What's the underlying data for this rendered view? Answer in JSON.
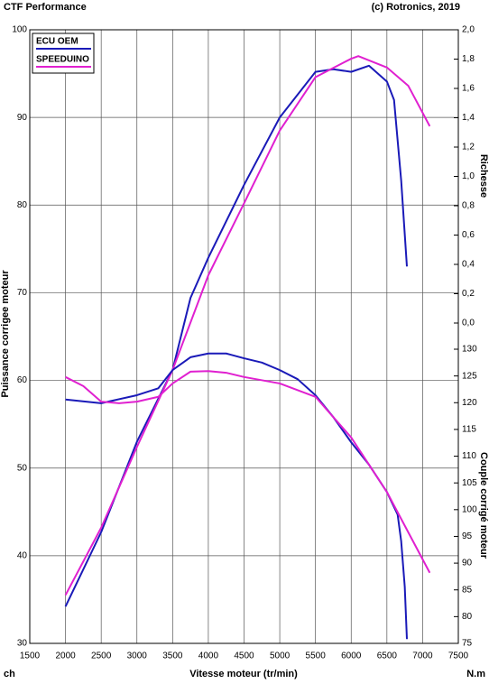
{
  "chart_data": {
    "type": "line",
    "title": "CTF Performance",
    "subtitle": "(c) Rotronics, 2019",
    "x_label": "Vitesse moteur (tr/min)",
    "y_label": "Puissance corrigee moteur",
    "y_unit": "ch",
    "y2_label": "Couple corrigé moteur",
    "y2_unit": "N.m",
    "y3_label": "Richesse",
    "xlim": [
      1500,
      7500
    ],
    "xticks": [
      1500,
      2000,
      2500,
      3000,
      3500,
      4000,
      4500,
      5000,
      5500,
      6000,
      6500,
      7000,
      7500
    ],
    "ylim": [
      30,
      100
    ],
    "yticks": [
      30,
      40,
      50,
      60,
      70,
      80,
      90,
      100
    ],
    "y2lim": [
      75,
      130
    ],
    "y2ticks": [
      75,
      80,
      85,
      90,
      95,
      100,
      105,
      110,
      115,
      120,
      125,
      130
    ],
    "y3lim": [
      0,
      2
    ],
    "y3ticks": [
      {
        "value": 0,
        "label": "0,0"
      },
      {
        "value": 0.2,
        "label": "0,2"
      },
      {
        "value": 0.4,
        "label": "0,4"
      },
      {
        "value": 0.6,
        "label": "0,6"
      },
      {
        "value": 0.8,
        "label": "0,8"
      },
      {
        "value": 1,
        "label": "1,0"
      },
      {
        "value": 1.2,
        "label": "1,2"
      },
      {
        "value": 1.4,
        "label": "1,4"
      },
      {
        "value": 1.6,
        "label": "1,6"
      },
      {
        "value": 1.8,
        "label": "1,8"
      },
      {
        "value": 2,
        "label": "2,0"
      }
    ],
    "grid": true,
    "legend": "upper left",
    "series": [
      {
        "name": "ECU OEM",
        "color": "#1a1ab8",
        "x": [
          2000,
          2500,
          3000,
          3500,
          3750,
          4000,
          4500,
          5000,
          5500,
          5750,
          6000,
          6250,
          6500,
          6600,
          6700,
          6780
        ],
        "values": [
          34.2,
          42.7,
          53,
          61.2,
          69.4,
          74,
          82.3,
          90,
          95.2,
          95.5,
          95.2,
          95.9,
          94.1,
          92,
          82.8,
          73
        ]
      },
      {
        "name": "SPEEDUINO",
        "color": "#e020d0",
        "x": [
          2000,
          2500,
          3000,
          3500,
          4000,
          4500,
          5000,
          5500,
          6000,
          6100,
          6500,
          6800,
          7100
        ],
        "values": [
          35.5,
          43.2,
          52.4,
          61.2,
          72,
          80.2,
          88.5,
          94.6,
          96.7,
          97,
          95.7,
          93.6,
          89
        ]
      },
      {
        "color": "#1a1ab8",
        "axis": "y2",
        "x": [
          2000,
          2500,
          3000,
          3300,
          3500,
          3750,
          4000,
          4250,
          4500,
          4750,
          5000,
          5250,
          5500,
          5750,
          6000,
          6250,
          6500,
          6650,
          6700,
          6750,
          6780
        ],
        "values": [
          120.6,
          119.9,
          121.4,
          122.7,
          126.1,
          128.5,
          129.2,
          129.2,
          128.3,
          127.5,
          126.1,
          124.4,
          121.4,
          117.3,
          112.6,
          108.4,
          103.3,
          99.1,
          94.1,
          85.6,
          75.8
        ]
      },
      {
        "color": "#e020d0",
        "axis": "y2",
        "x": [
          2000,
          2250,
          2500,
          2750,
          3000,
          3300,
          3500,
          3750,
          4000,
          4250,
          4500,
          5000,
          5500,
          6000,
          6500,
          7100
        ],
        "values": [
          124.8,
          123.1,
          120.2,
          119.9,
          120.2,
          121.1,
          123.6,
          125.8,
          125.9,
          125.6,
          124.8,
          123.6,
          121.1,
          113.5,
          103.3,
          88.2
        ]
      }
    ]
  }
}
